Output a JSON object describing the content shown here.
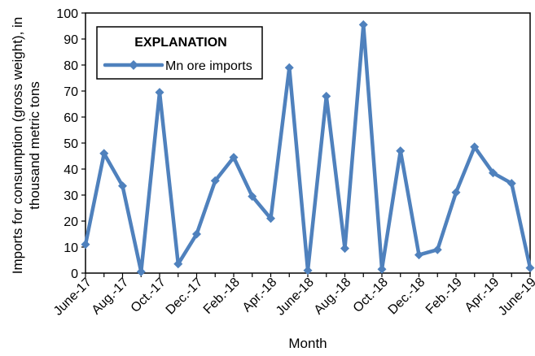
{
  "chart_data": {
    "type": "line",
    "x": [
      "June-17",
      "July-17",
      "Aug.-17",
      "Sept.-17",
      "Oct.-17",
      "Nov.-17",
      "Dec.-17",
      "Jan.-18",
      "Feb.-18",
      "Mar.-18",
      "Apr.-18",
      "May-18",
      "June-18",
      "July-18",
      "Aug.-18",
      "Sept.-18",
      "Oct.-18",
      "Nov.-18",
      "Dec.-18",
      "Jan.-19",
      "Feb.-19",
      "Mar.-19",
      "Apr.-19",
      "May-19",
      "June-19"
    ],
    "x_tick_labels": [
      "June-17",
      "Aug.-17",
      "Oct.-17",
      "Dec.-17",
      "Feb.-18",
      "Apr.-18",
      "June-18",
      "Aug.-18",
      "Oct.-18",
      "Dec.-18",
      "Feb.-19",
      "Apr.-19",
      "June-19"
    ],
    "series": [
      {
        "name": "Mn ore imports",
        "color": "#4f81bd",
        "marker": "diamond",
        "values": [
          11,
          46,
          33.5,
          0.5,
          69.5,
          3.5,
          15,
          35.5,
          44.5,
          29.5,
          21,
          79,
          1,
          68,
          9.5,
          95.5,
          1.5,
          47,
          7,
          9,
          31,
          48.5,
          38.5,
          34.5,
          2
        ]
      }
    ],
    "ylim": [
      0,
      100
    ],
    "y_ticks": [
      0,
      10,
      20,
      30,
      40,
      50,
      60,
      70,
      80,
      90,
      100
    ],
    "xlabel": "Month",
    "ylabel_lines": [
      "Imports for consumption (gross weight), in",
      "thousand metric tons"
    ],
    "legend": {
      "title": "EXPLANATION",
      "placement": "top-left"
    },
    "grid": false
  }
}
